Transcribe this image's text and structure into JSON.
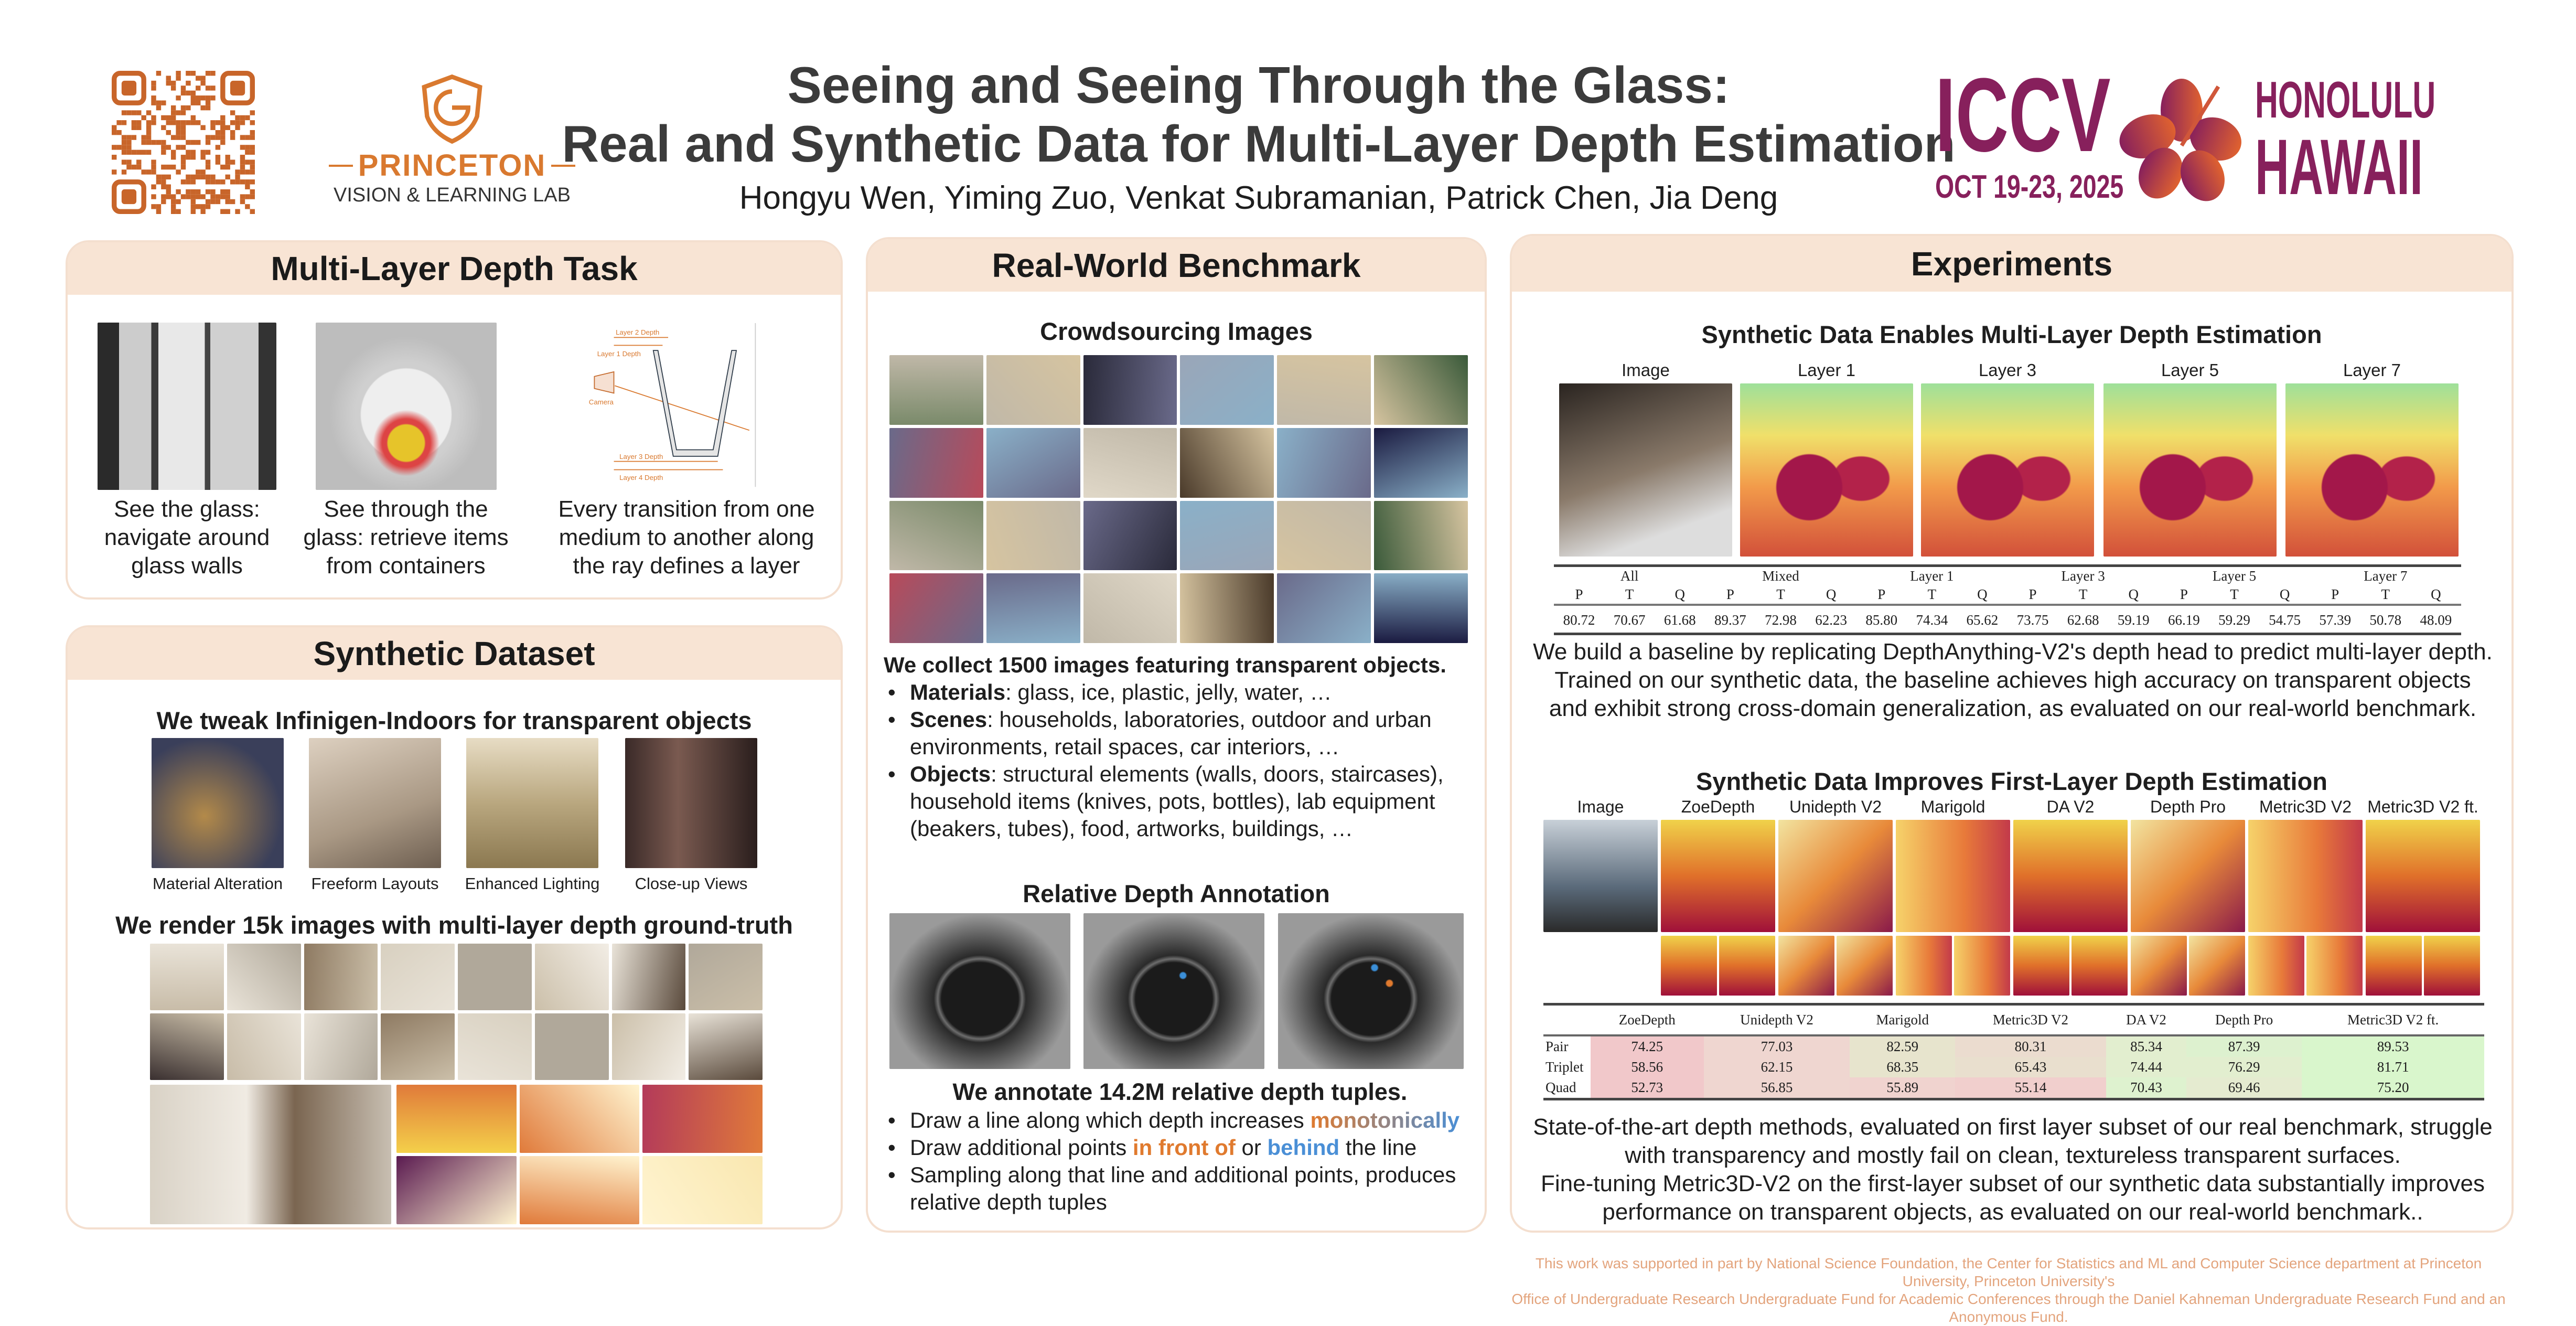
{
  "header": {
    "title_line1": "Seeing and Seeing Through the Glass:",
    "title_line2": "Real and Synthetic Data for Multi-Layer Depth Estimation",
    "authors": "Hongyu Wen, Yiming Zuo, Venkat Subramanian, Patrick Chen, Jia Deng",
    "lab_logo": {
      "name": "PRINCETON",
      "sub": "VISION & LEARNING LAB",
      "color": "#d9792f"
    },
    "conference_logo": {
      "name": "ICCV",
      "dates": "OCT 19-23, 2025",
      "city": "HONOLULU",
      "state": "HAWAII",
      "color": "#87205c"
    },
    "qr_color": "#c8652a"
  },
  "task": {
    "title": "Multi-Layer Depth Task",
    "captions": [
      "See the glass: navigate around glass walls",
      "See through the glass: retrieve items from containers",
      "Every transition from one medium to another along the ray defines a layer"
    ],
    "diagram": {
      "labels": [
        "Layer 2 Depth",
        "Layer 1 Depth",
        "Camera",
        "Layer 3 Depth",
        "Layer 4 Depth"
      ]
    }
  },
  "synthetic": {
    "title": "Synthetic Dataset",
    "tweak": "We tweak Infinigen-Indoors for transparent objects",
    "captions": [
      "Material Alteration",
      "Freeform Layouts",
      "Enhanced Lighting",
      "Close-up Views"
    ],
    "render": "We render 15k images with multi-layer depth ground-truth"
  },
  "benchmark": {
    "title": "Real-World Benchmark",
    "crowd_title": "Crowdsourcing Images",
    "collect": "We collect 1500 images featuring transparent objects.",
    "bullets": [
      {
        "label": "Materials",
        "text": ": glass, ice, plastic, jelly, water, …"
      },
      {
        "label": "Scenes",
        "text": ": households, laboratories, outdoor and urban environments, retail spaces, car interiors, …"
      },
      {
        "label": "Objects",
        "text": ": structural elements (walls, doors, staircases), household items (knives, pots, bottles), lab equipment (beakers, tubes), food, artworks, buildings, …"
      }
    ],
    "annot_title": "Relative Depth Annotation",
    "annotate": "We annotate 14.2M relative depth tuples.",
    "annot_bullets": {
      "b1_pre": "Draw a line along which depth increases ",
      "b1_hl": "monotonically",
      "b2_pre": "Draw additional points ",
      "b2_hl1": "in front of",
      "b2_mid": " or ",
      "b2_hl2": "behind",
      "b2_post": " the line",
      "b3": "Sampling along that line and additional points, produces relative depth tuples"
    },
    "accent_colors": {
      "front": "#e07a2e",
      "behind": "#4a8fd6"
    }
  },
  "experiments": {
    "title": "Experiments",
    "s1_title": "Synthetic Data Enables Multi-Layer Depth Estimation",
    "s1_labels": [
      "Image",
      "Layer 1",
      "Layer 3",
      "Layer 5",
      "Layer 7"
    ],
    "table1": {
      "groups": [
        "All",
        "Mixed",
        "Layer 1",
        "Layer 3",
        "Layer 5",
        "Layer 7"
      ],
      "subcols": [
        "P",
        "T",
        "Q"
      ],
      "values": [
        "80.72",
        "70.67",
        "61.68",
        "89.37",
        "72.98",
        "62.23",
        "85.80",
        "74.34",
        "65.62",
        "73.75",
        "62.68",
        "59.19",
        "66.19",
        "59.29",
        "54.75",
        "57.39",
        "50.78",
        "48.09"
      ]
    },
    "s1_text": "We build a baseline by replicating DepthAnything-V2's depth head to predict multi-layer depth. Trained on our synthetic data, the baseline achieves high accuracy on transparent objects and exhibit strong cross-domain generalization, as evaluated on our real-world benchmark.",
    "s2_title": "Synthetic Data Improves First-Layer Depth Estimation",
    "s2_labels": [
      "Image",
      "ZoeDepth",
      "Unidepth V2",
      "Marigold",
      "DA V2",
      "Depth Pro",
      "Metric3D V2",
      "Metric3D V2 ft."
    ],
    "table2": {
      "columns": [
        "ZoeDepth",
        "Unidepth V2",
        "Marigold",
        "Metric3D V2",
        "DA V2",
        "Depth Pro",
        "Metric3D V2 ft."
      ],
      "rows": [
        {
          "label": "Pair",
          "values": [
            "74.25",
            "77.03",
            "82.59",
            "80.31",
            "85.34",
            "87.39",
            "89.53"
          ],
          "colors": [
            "#f1c8ca",
            "#efd6d0",
            "#e7e4cd",
            "#ebdccf",
            "#e2eecf",
            "#ddf1cf",
            "#d9f6cc"
          ]
        },
        {
          "label": "Triplet",
          "values": [
            "58.56",
            "62.15",
            "68.35",
            "65.43",
            "74.44",
            "76.29",
            "81.71"
          ],
          "colors": [
            "#f1c8ca",
            "#efd6d0",
            "#e7e4cd",
            "#e9dfce",
            "#e2eecf",
            "#e2eecf",
            "#d9f6cc"
          ]
        },
        {
          "label": "Quad",
          "values": [
            "52.73",
            "56.85",
            "55.89",
            "55.14",
            "70.43",
            "69.46",
            "75.20"
          ],
          "colors": [
            "#f1c8ca",
            "#efd6d0",
            "#f0d3cf",
            "#f1cfcd",
            "#def2cf",
            "#e5ebd0",
            "#d9f6cc"
          ]
        }
      ]
    },
    "s2_text1": "State-of-the-art depth methods, evaluated on first layer subset of our real benchmark, struggle with transparency and mostly fail on clean, textureless transparent surfaces.",
    "s2_text2": "Fine-tuning Metric3D-V2 on the first-layer subset of our synthetic data substantially improves performance on transparent objects, as evaluated on our real-world benchmark.."
  },
  "footer": {
    "line1": "This work was supported in part by National Science Foundation, the Center for Statistics and ML and Computer Science department at Princeton University,  Princeton University's",
    "line2": "Office of Undergraduate Research Undergraduate Fund for Academic Conferences through the Daniel Kahneman Undergraduate Research Fund and an Anonymous Fund."
  }
}
